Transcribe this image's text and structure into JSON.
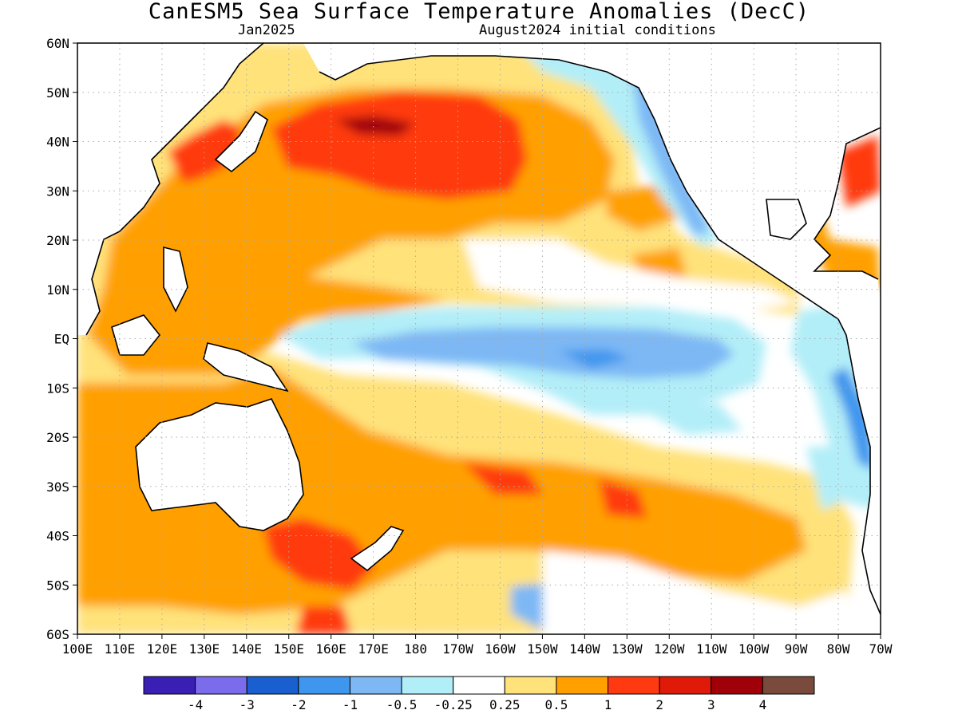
{
  "title": "CanESM5 Sea Surface Temperature Anomalies (DecC)",
  "subtitle_left": "Jan2025",
  "subtitle_right": "August2024 initial conditions",
  "lat_ticks": [
    "60N",
    "50N",
    "40N",
    "30N",
    "20N",
    "10N",
    "EQ",
    "10S",
    "20S",
    "30S",
    "40S",
    "50S",
    "60S"
  ],
  "lon_ticks": [
    "100E",
    "110E",
    "120E",
    "130E",
    "140E",
    "150E",
    "160E",
    "170E",
    "180",
    "170W",
    "160W",
    "150W",
    "140W",
    "130W",
    "120W",
    "110W",
    "100W",
    "90W",
    "80W",
    "70W"
  ],
  "colorbar": {
    "colors": [
      "#3a1fb5",
      "#7b6cec",
      "#1a5fcf",
      "#3f96ee",
      "#7db8f5",
      "#b2eef8",
      "#ffffff",
      "#ffe27a",
      "#ffa000",
      "#ff3a10",
      "#e01a08",
      "#a00008",
      "#7a4a3c"
    ],
    "labels": [
      "-4",
      "-3",
      "-2",
      "-1",
      "-0.5",
      "-0.25",
      "0.25",
      "0.5",
      "1",
      "2",
      "3",
      "4"
    ]
  },
  "colors": {
    "land": "#ffffff",
    "coast": "#000000",
    "grid": "#aaaaaa",
    "weak_warm": "#ffe27a",
    "warm": "#ffa000",
    "strong_warm": "#ff3a10",
    "very_warm": "#e01a08",
    "hot": "#a00008",
    "weak_cool": "#b2eef8",
    "cool": "#7db8f5",
    "cooler": "#3f96ee",
    "cold": "#1a5fcf"
  }
}
